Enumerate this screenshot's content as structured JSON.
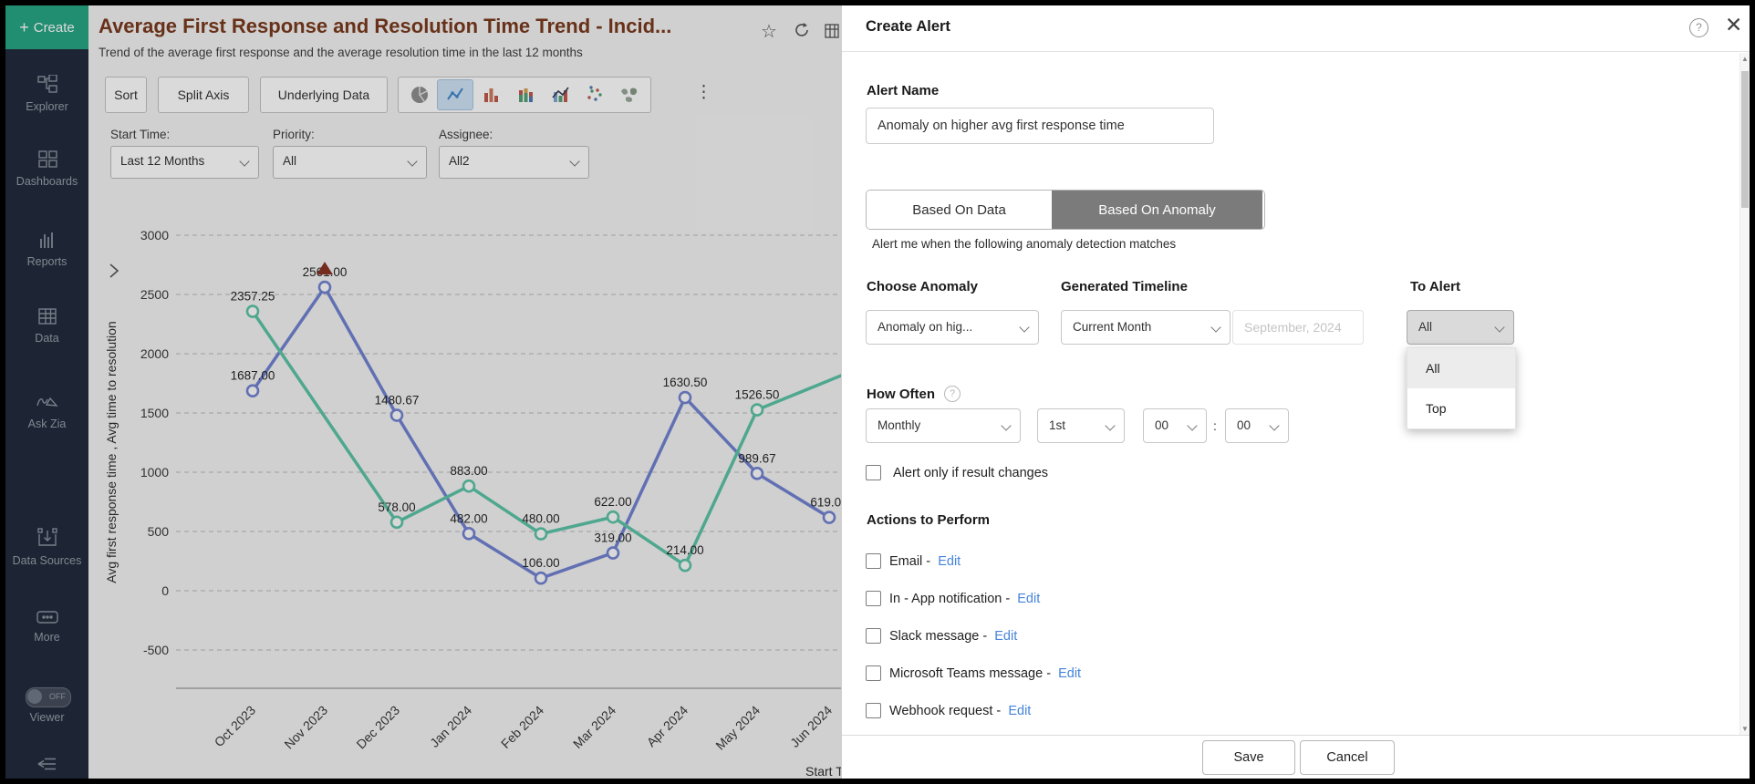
{
  "sidebar": {
    "create_label": "Create",
    "items": [
      {
        "label": "Explorer"
      },
      {
        "label": "Dashboards"
      },
      {
        "label": "Reports"
      },
      {
        "label": "Data"
      },
      {
        "label": "Ask Zia"
      },
      {
        "label": "Data Sources"
      },
      {
        "label": "More"
      }
    ],
    "viewer": {
      "toggle_state": "OFF",
      "label": "Viewer"
    }
  },
  "report": {
    "title": "Average First Response and Resolution Time Trend - Incid...",
    "subtitle": "Trend of the average first response and the average resolution time in the last 12 months",
    "toolbar": {
      "sort": "Sort",
      "split_axis": "Split Axis",
      "underlying_data": "Underlying Data",
      "more": "⋮"
    },
    "filters": [
      {
        "label": "Start Time:",
        "value": "Last 12 Months"
      },
      {
        "label": "Priority:",
        "value": "All"
      },
      {
        "label": "Assignee:",
        "value": "All2"
      }
    ]
  },
  "chart_data": {
    "type": "line",
    "x": [
      "Oct 2023",
      "Nov 2023",
      "Dec 2023",
      "Jan 2024",
      "Feb 2024",
      "Mar 2024",
      "Apr 2024",
      "May 2024",
      "Jun 2024"
    ],
    "xlabel": "Start Time",
    "ylabel": "Avg first response time , Avg time to resolution",
    "ylim": [
      -500,
      3000
    ],
    "ytick_step": 500,
    "grid": "dashed-horizontal",
    "series": [
      {
        "name": "Avg first response time",
        "color": "#7283d2",
        "values": [
          1687.0,
          2561.0,
          1480.67,
          482.0,
          106.0,
          319.0,
          1630.5,
          989.67,
          619.0
        ]
      },
      {
        "name": "Avg time to resolution",
        "color": "#5cc4a6",
        "values": [
          2357.25,
          null,
          578.0,
          883.0,
          480.0,
          622.0,
          214.0,
          1526.5,
          null
        ],
        "trail_value": 1850
      }
    ],
    "anomaly": {
      "x": "Nov 2023",
      "value": 2561.0,
      "marker_color": "#8a3424"
    }
  },
  "alert_panel": {
    "title": "Create Alert",
    "help_icon": "?",
    "close_icon": "✕",
    "alert_name_label": "Alert Name",
    "alert_name_value": "Anomaly on higher avg first response time",
    "tabs": [
      {
        "label": "Based On Data",
        "selected": false
      },
      {
        "label": "Based On Anomaly",
        "selected": true
      }
    ],
    "tab_hint": "Alert me when the following anomaly detection matches",
    "choose_anomaly": {
      "label": "Choose Anomaly",
      "value": "Anomaly on hig..."
    },
    "generated_timeline": {
      "label": "Generated Timeline",
      "value": "Current Month",
      "date_value": "September, 2024"
    },
    "to_alert": {
      "label": "To Alert",
      "value": "All",
      "options": [
        "All",
        "Top"
      ],
      "highlighted_option": "All"
    },
    "how_often": {
      "label": "How Often",
      "help": "?",
      "frequency": "Monthly",
      "day": "1st",
      "hour": "00",
      "separator": ":",
      "minute": "00"
    },
    "result_changes_label": "Alert only if result changes",
    "actions": {
      "label": "Actions to Perform",
      "separator": "-",
      "edit_label": "Edit",
      "items": [
        "Email",
        "In - App notification",
        "Slack message",
        "Microsoft Teams message",
        "Webhook request"
      ]
    },
    "footer": {
      "save": "Save",
      "cancel": "Cancel"
    }
  }
}
